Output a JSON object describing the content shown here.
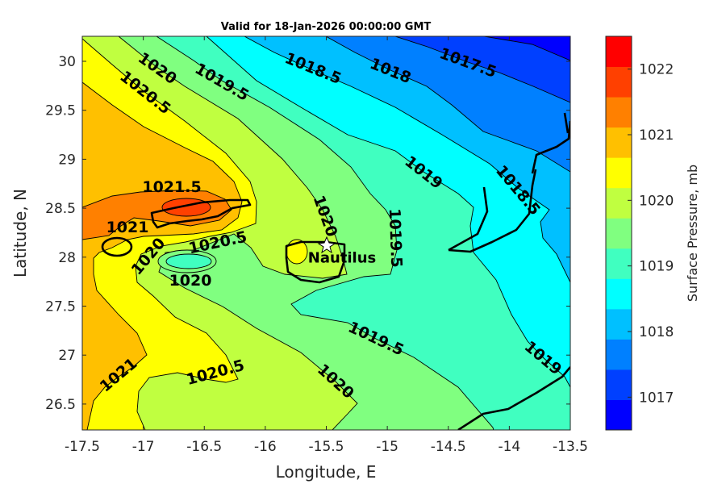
{
  "chart_data": {
    "type": "contour",
    "title": "Valid for 18-Jan-2026 00:00:00 GMT",
    "xlabel": "Longitude, E",
    "ylabel": "Latitude, N",
    "xlim": [
      -17.5,
      -13.5
    ],
    "ylim": [
      26.24,
      30.26
    ],
    "xticks": [
      "-17.5",
      "-17",
      "-16.5",
      "-16",
      "-15.5",
      "-15",
      "-14.5",
      "-14",
      "-13.5"
    ],
    "xtick_values": [
      -17.5,
      -17,
      -16.5,
      -16,
      -15.5,
      -15,
      -14.5,
      -14,
      -13.5
    ],
    "yticks": [
      "26.5",
      "27",
      "27.5",
      "28",
      "28.5",
      "29",
      "29.5",
      "30"
    ],
    "ytick_values": [
      26.5,
      27,
      27.5,
      28,
      28.5,
      29,
      29.5,
      30
    ],
    "colorbar": {
      "label": "Surface Pressure, mb",
      "range": [
        1016.5,
        1022.5
      ],
      "ticks": [
        "1017",
        "1018",
        "1019",
        "1020",
        "1021",
        "1022"
      ],
      "tick_values": [
        1017,
        1018,
        1019,
        1020,
        1021,
        1022
      ],
      "colors": [
        "#0000ff",
        "#0040ff",
        "#0080ff",
        "#00c0ff",
        "#00ffff",
        "#40ffc0",
        "#80ff80",
        "#c0ff40",
        "#ffff00",
        "#ffc000",
        "#ff8000",
        "#ff4000",
        "#ff0000"
      ]
    },
    "contour_levels": [
      1017,
      1017.5,
      1018,
      1018.5,
      1019,
      1019.5,
      1020,
      1020.5,
      1021,
      1021.5,
      1022
    ],
    "contour_labels": [
      "1020",
      "1020.5",
      "1019.5",
      "1018.5",
      "1018",
      "1017.5",
      "1019",
      "1018.5",
      "1021.5",
      "1021",
      "1020.5",
      "1020",
      "1020",
      "1020",
      "1019.5",
      "1019.5",
      "1020",
      "1020.5",
      "1021",
      "1019"
    ],
    "annotation": {
      "text": "Nautilus",
      "lon": -15.35,
      "lat": 28.15
    }
  }
}
